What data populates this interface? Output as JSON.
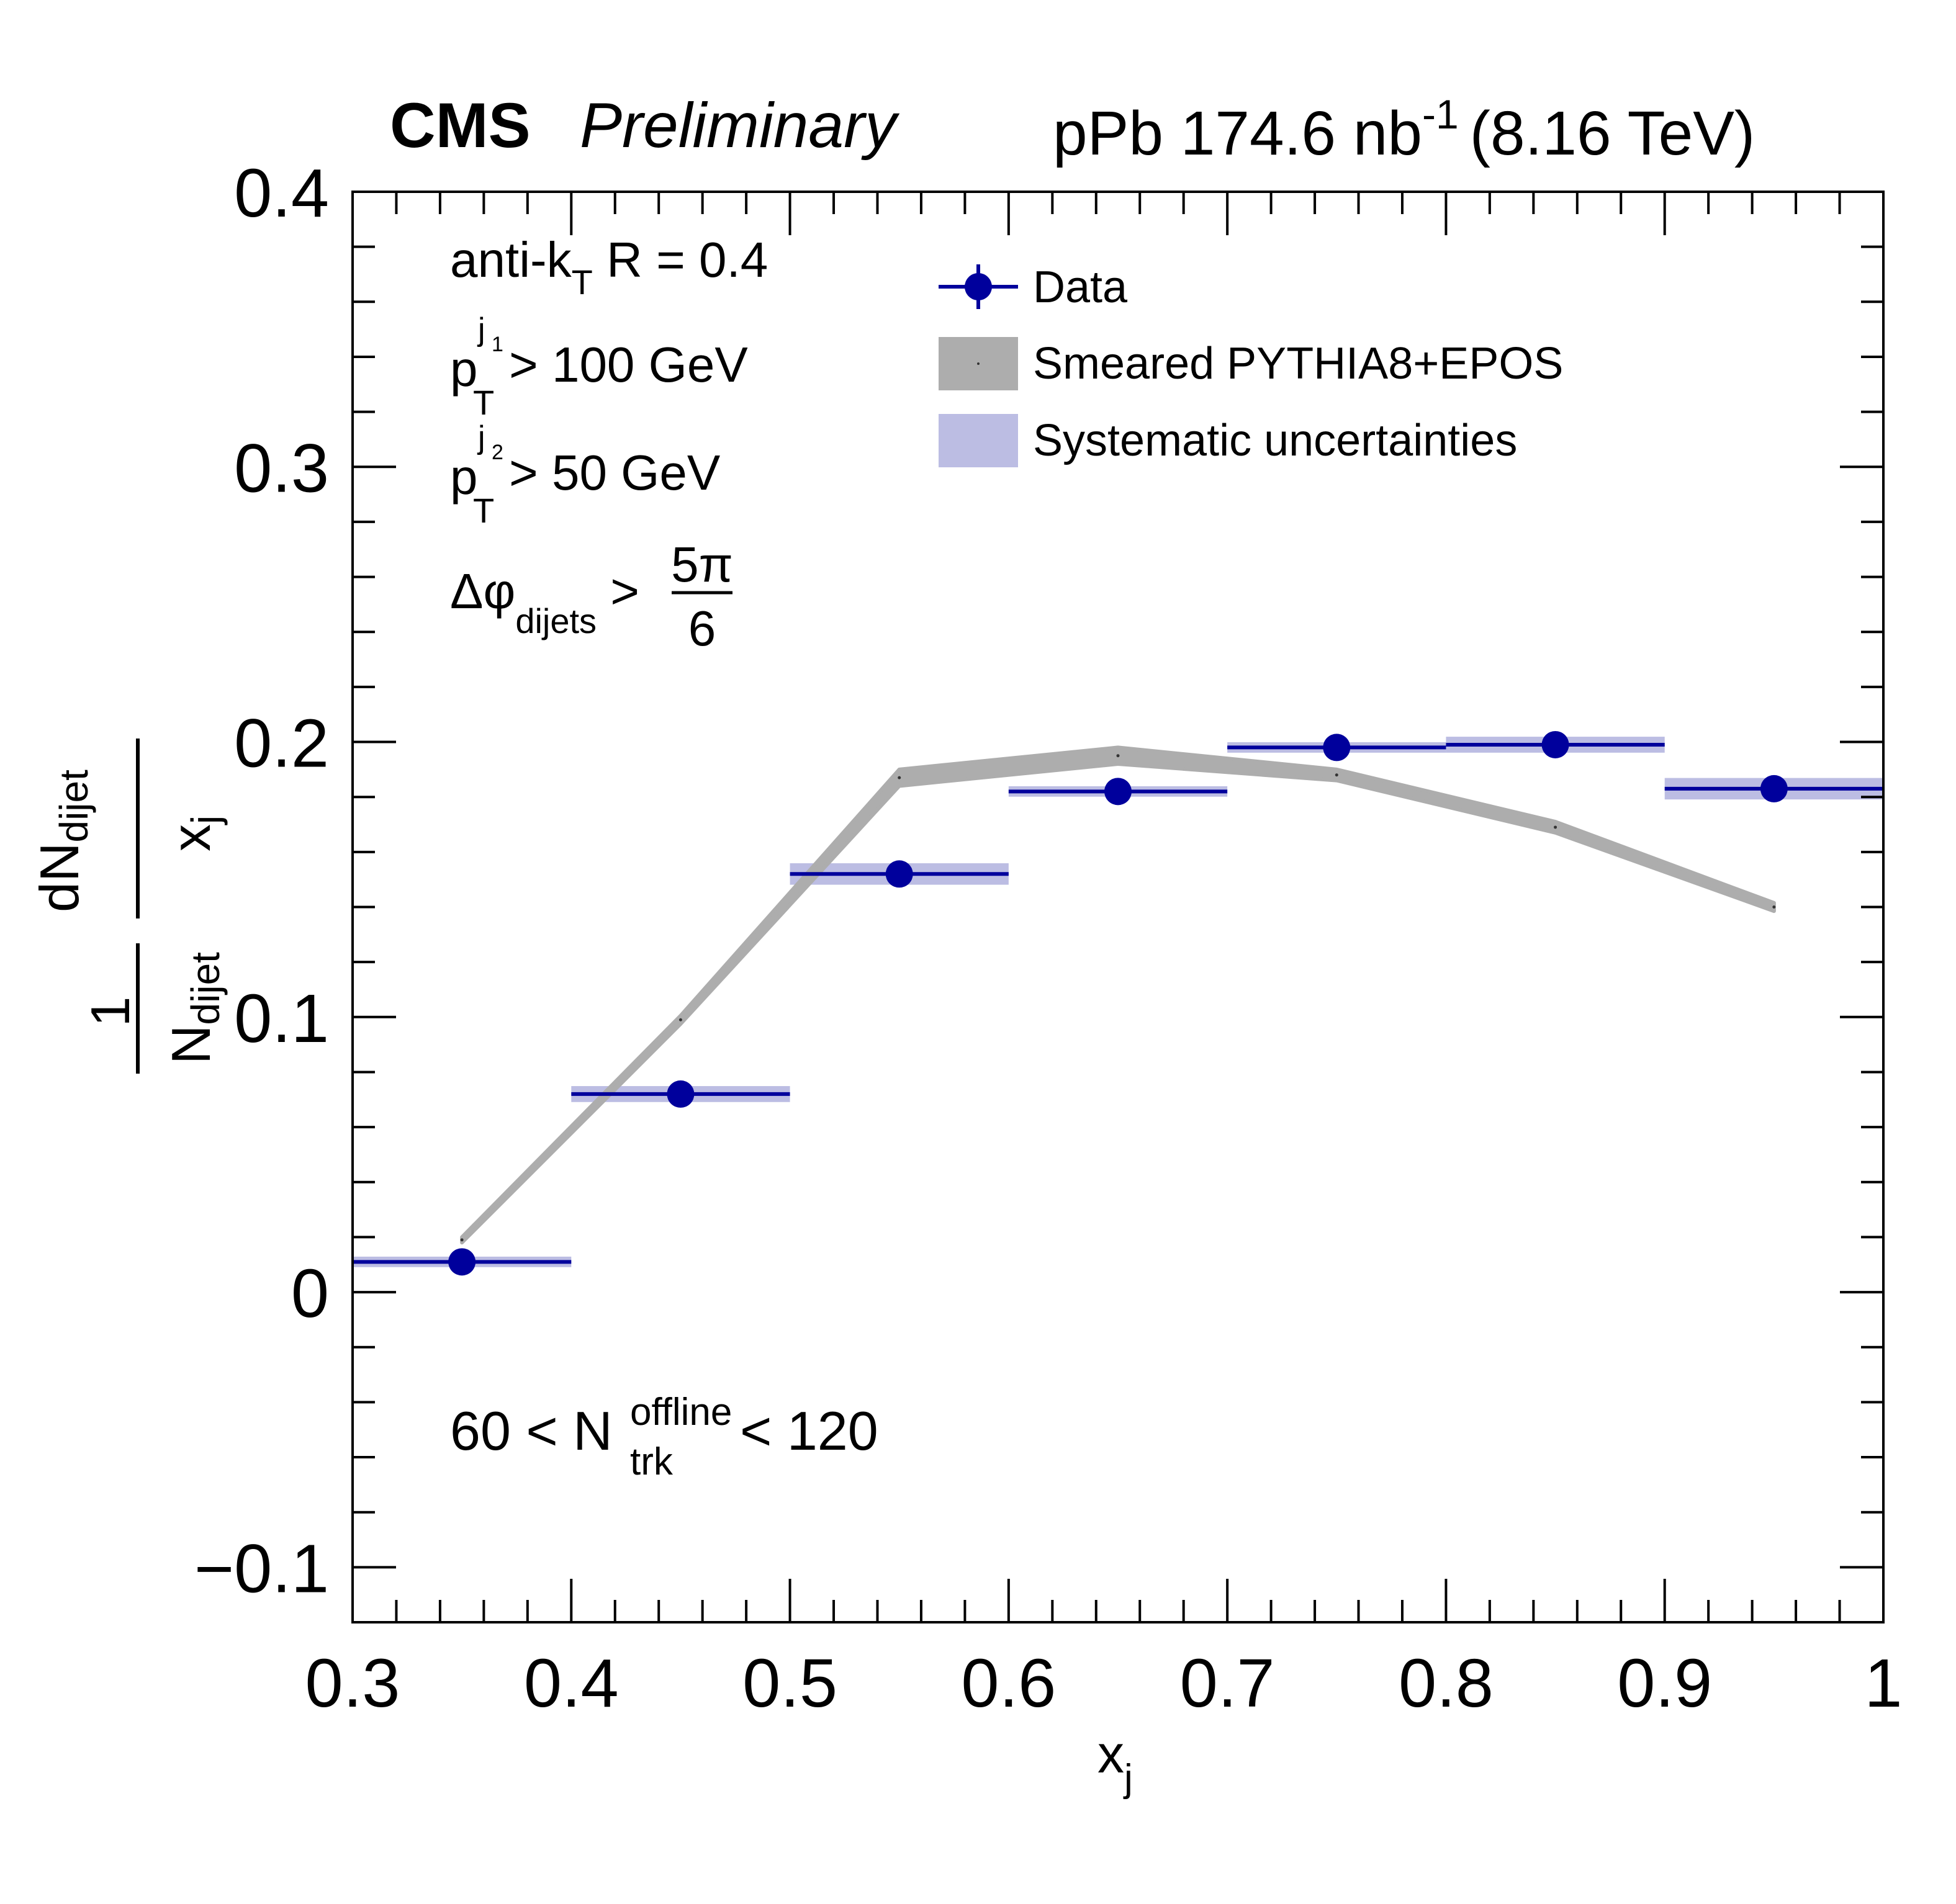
{
  "header": {
    "cms": "CMS",
    "preliminary": "Preliminary",
    "lumi_main": "pPb 174.6 nb",
    "lumi_sup": "-1",
    "lumi_energy": "(8.16 TeV)"
  },
  "annotations": {
    "jet_algo_main": "anti-k",
    "jet_algo_sub": "T",
    "jet_algo_rest": " R = 0.4",
    "pt1_p": "p",
    "pt1_sub": "T",
    "pt1_sup": "j",
    "pt1_supsub": "1",
    "pt1_rest": " > 100 GeV",
    "pt2_p": "p",
    "pt2_sub": "T",
    "pt2_sup": "j",
    "pt2_supsub": "2",
    "pt2_rest": " > 50 GeV",
    "dphi_main": "Δφ",
    "dphi_sub": "dijets",
    "dphi_gt": " >",
    "dphi_num": "5π",
    "dphi_den": "6",
    "ntrk_pre": "60 < N",
    "ntrk_sup": "offline",
    "ntrk_sub": "trk",
    "ntrk_post": " < 120"
  },
  "legend": {
    "data": "Data",
    "mc": "Smeared PYTHIA8+EPOS",
    "syst": "Systematic uncertainties"
  },
  "axis": {
    "xlabel_main": "x",
    "xlabel_sub": "j",
    "ylabel_one": "1",
    "ylabel_N": "N",
    "ylabel_N_sub": "dijet",
    "ylabel_dN": "dN",
    "ylabel_dN_sub": "dijet",
    "ylabel_x": "x",
    "ylabel_x_sub": "j"
  },
  "colors": {
    "data": "#00009c",
    "syst": "#bcbde3",
    "mc": "#adadad",
    "frame": "#000000"
  },
  "chart_data": {
    "type": "scatter",
    "xlabel": "x_j",
    "ylabel": "1/N_dijet dN_dijet/x_j",
    "xlim": [
      0.3,
      1.0
    ],
    "ylim": [
      -0.12,
      0.4
    ],
    "xticks": [
      "0.3",
      "0.4",
      "0.5",
      "0.6",
      "0.7",
      "0.8",
      "0.9",
      "1"
    ],
    "xtick_values": [
      0.3,
      0.4,
      0.5,
      0.6,
      0.7,
      0.8,
      0.9,
      1.0
    ],
    "yticks": [
      "−0.1",
      "0",
      "0.1",
      "0.2",
      "0.3",
      "0.4"
    ],
    "ytick_values": [
      -0.1,
      0.0,
      0.1,
      0.2,
      0.3,
      0.4
    ],
    "bin_edges": [
      0.3,
      0.4,
      0.5,
      0.6,
      0.7,
      0.8,
      0.9,
      1.0
    ],
    "series": [
      {
        "name": "Data",
        "x": [
          0.35,
          0.45,
          0.55,
          0.65,
          0.75,
          0.85,
          0.95
        ],
        "y": [
          0.011,
          0.072,
          0.152,
          0.182,
          0.198,
          0.199,
          0.183
        ],
        "syst": [
          0.001,
          0.002,
          0.003,
          0.001,
          0.001,
          0.002,
          0.003
        ]
      },
      {
        "name": "Smeared PYTHIA8+EPOS",
        "x": [
          0.35,
          0.45,
          0.55,
          0.65,
          0.75,
          0.85,
          0.95
        ],
        "y": [
          0.019,
          0.099,
          0.187,
          0.195,
          0.188,
          0.169,
          0.14
        ],
        "band": [
          0.001,
          0.0015,
          0.003,
          0.003,
          0.002,
          0.002,
          0.0015
        ]
      }
    ],
    "legend_position": "top-right",
    "grid": false
  }
}
